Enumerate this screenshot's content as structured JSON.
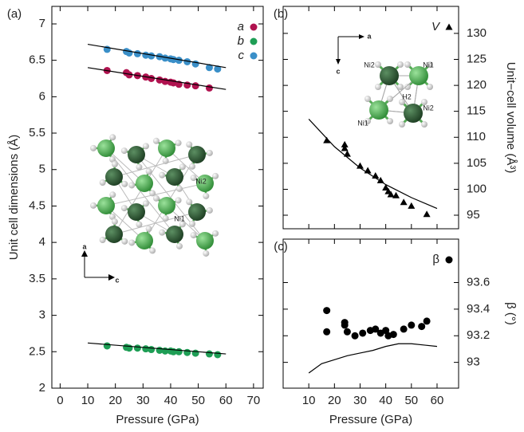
{
  "chart_data": [
    {
      "type": "scatter",
      "label": "(a)",
      "xlabel": "Pressure (GPa)",
      "ylabel": "Unit cell dimensions (Å)",
      "yaxis": "left",
      "xlim": [
        -3,
        73.5
      ],
      "ylim": [
        2,
        7.24
      ],
      "xticks": [
        0,
        10,
        20,
        30,
        40,
        50,
        60,
        70
      ],
      "yticks": [
        2,
        2.5,
        3,
        3.5,
        4,
        4.5,
        5,
        5.5,
        6,
        6.5,
        7
      ],
      "legend": "top-right",
      "series": [
        {
          "name": "a",
          "color": "#b0124f",
          "marker": "circle",
          "x": [
            17,
            24,
            25,
            28,
            31,
            33,
            36,
            38,
            40,
            41,
            43,
            46,
            49,
            54
          ],
          "values": [
            6.36,
            6.33,
            6.3,
            6.29,
            6.27,
            6.25,
            6.23,
            6.21,
            6.2,
            6.19,
            6.17,
            6.16,
            6.15,
            6.12
          ]
        },
        {
          "name": "b",
          "color": "#1e9e55",
          "marker": "circle",
          "x": [
            17,
            24,
            25,
            28,
            31,
            33,
            36,
            38,
            40,
            41,
            43,
            46,
            49,
            54,
            57
          ],
          "values": [
            2.58,
            2.56,
            2.55,
            2.55,
            2.54,
            2.53,
            2.52,
            2.51,
            2.51,
            2.5,
            2.5,
            2.49,
            2.48,
            2.47,
            2.46
          ]
        },
        {
          "name": "c",
          "color": "#3a8fc8",
          "marker": "circle",
          "x": [
            17,
            24,
            25,
            28,
            31,
            33,
            36,
            38,
            40,
            41,
            43,
            46,
            49,
            54,
            57
          ],
          "values": [
            6.65,
            6.62,
            6.6,
            6.59,
            6.57,
            6.56,
            6.55,
            6.53,
            6.52,
            6.51,
            6.5,
            6.48,
            6.45,
            6.4,
            6.38
          ]
        },
        {
          "mode": "line",
          "color": "#000000",
          "x": [
            10,
            60
          ],
          "values": [
            6.4,
            6.1
          ]
        },
        {
          "mode": "line",
          "color": "#000000",
          "x": [
            10,
            60
          ],
          "values": [
            2.62,
            2.47
          ]
        },
        {
          "mode": "line",
          "color": "#000000",
          "x": [
            10,
            60
          ],
          "values": [
            6.72,
            6.4
          ]
        }
      ],
      "annotations": [
        "Ni2",
        "Ni1",
        "a",
        "c"
      ]
    },
    {
      "type": "scatter",
      "label": "(b)",
      "ylabel": "Unit−cell volume (Å³)",
      "yaxis": "right",
      "xlim": [
        0,
        68.4
      ],
      "ylim": [
        92.4,
        135.2
      ],
      "xticks": [
        10,
        20,
        30,
        40,
        50,
        60
      ],
      "yticks": [
        95,
        100,
        105,
        110,
        115,
        120,
        125,
        130
      ],
      "legend": "top-right",
      "series": [
        {
          "name": "V",
          "color": "#000000",
          "marker": "triangle",
          "x": [
            17,
            24,
            24,
            25,
            30,
            33,
            36,
            38,
            40,
            41,
            42,
            44,
            47,
            50,
            56
          ],
          "values": [
            109.4,
            108.6,
            107.9,
            106.8,
            104.5,
            103.6,
            102.6,
            101.7,
            100.3,
            99.6,
            99.0,
            98.8,
            97.5,
            96.8,
            95.2
          ]
        },
        {
          "mode": "line",
          "color": "#000000",
          "x": [
            10,
            20,
            30,
            40,
            50,
            60
          ],
          "values": [
            113.5,
            108.2,
            104.1,
            100.9,
            98.4,
            96.3
          ]
        }
      ],
      "annotations": [
        "Ni2",
        "Ni1",
        "H2",
        "Ni1",
        "Ni2",
        "a",
        "c"
      ]
    },
    {
      "type": "scatter",
      "label": "(c)",
      "xlabel": "Pressure (GPa)",
      "ylabel": "β (°)",
      "yaxis": "right",
      "xlim": [
        0,
        68.4
      ],
      "ylim": [
        92.806,
        93.927
      ],
      "xticks": [
        10,
        20,
        30,
        40,
        50,
        60
      ],
      "yticks": [
        93,
        93.2,
        93.4,
        93.6
      ],
      "legend": "top-right",
      "series": [
        {
          "name": "β",
          "color": "#000000",
          "marker": "circle",
          "x": [
            17,
            17,
            24,
            24,
            25,
            28,
            31,
            34,
            36,
            38,
            40,
            41,
            43,
            47,
            50,
            54,
            56
          ],
          "values": [
            93.39,
            93.23,
            93.3,
            93.28,
            93.23,
            93.2,
            93.22,
            93.24,
            93.25,
            93.22,
            93.24,
            93.2,
            93.21,
            93.25,
            93.28,
            93.27,
            93.31
          ]
        },
        {
          "mode": "line",
          "color": "#000000",
          "x": [
            10,
            15,
            20,
            25,
            30,
            35,
            40,
            45,
            50,
            55,
            60
          ],
          "values": [
            92.92,
            92.99,
            93.02,
            93.05,
            93.07,
            93.09,
            93.12,
            93.14,
            93.14,
            93.13,
            93.12
          ]
        }
      ]
    }
  ]
}
